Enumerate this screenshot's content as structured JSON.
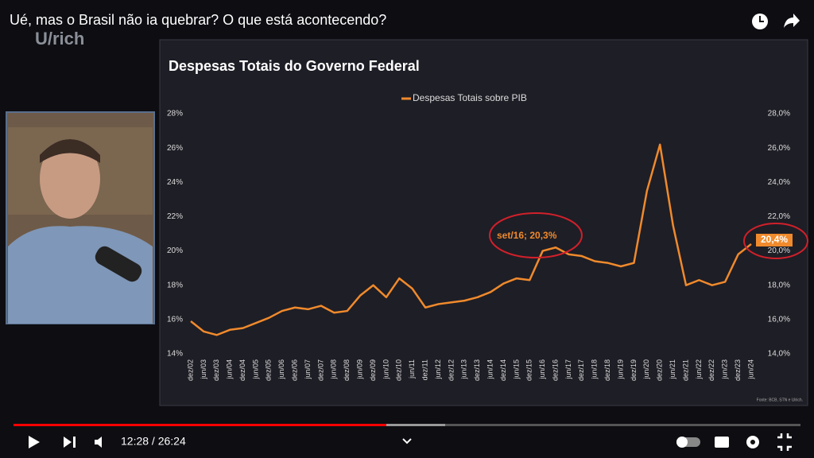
{
  "video": {
    "title": "Ué, mas o Brasil não ia quebrar? O que está acontecendo?",
    "channel_logo": "U/rich",
    "time": "12:28 / 26:24"
  },
  "chart_data": {
    "type": "line",
    "title": "Despesas Totais do Governo Federal",
    "source": "Fonte: BCB, STN e Ulrich.",
    "categories": [
      "dez/02",
      "jun/03",
      "dez/03",
      "jun/04",
      "dez/04",
      "jun/05",
      "dez/05",
      "jun/06",
      "dez/06",
      "jun/07",
      "dez/07",
      "jun/08",
      "dez/08",
      "jun/09",
      "dez/09",
      "jun/10",
      "dez/10",
      "jun/11",
      "dez/11",
      "jun/12",
      "dez/12",
      "jun/13",
      "dez/13",
      "jun/14",
      "dez/14",
      "jun/15",
      "dez/15",
      "jun/16",
      "dez/16",
      "jun/17",
      "dez/17",
      "jun/18",
      "dez/18",
      "jun/19",
      "dez/19",
      "jun/20",
      "dez/20",
      "jun/21",
      "dez/21",
      "jun/22",
      "dez/22",
      "jun/23",
      "dez/23",
      "jun/24"
    ],
    "series": [
      {
        "name": "Despesas Totais sobre PIB",
        "color": "#f08a2c",
        "values": [
          15.9,
          15.3,
          15.1,
          15.4,
          15.5,
          15.8,
          16.1,
          16.5,
          16.7,
          16.6,
          16.8,
          16.4,
          16.5,
          17.4,
          18.0,
          17.3,
          18.4,
          17.8,
          16.7,
          16.9,
          17.0,
          17.1,
          17.3,
          17.6,
          18.1,
          18.4,
          18.3,
          20.0,
          20.2,
          19.8,
          19.7,
          19.4,
          19.3,
          19.1,
          19.3,
          23.5,
          26.2,
          21.5,
          18.0,
          18.3,
          18.0,
          18.2,
          19.8,
          20.4
        ]
      }
    ],
    "ylim": [
      14,
      28
    ],
    "yticks": [
      {
        "value": 14,
        "label": "14%"
      },
      {
        "value": 16,
        "label": "16%"
      },
      {
        "value": 18,
        "label": "18%"
      },
      {
        "value": 20,
        "label": "20%"
      },
      {
        "value": 22,
        "label": "22%"
      },
      {
        "value": 24,
        "label": "24%"
      },
      {
        "value": 26,
        "label": "26%"
      },
      {
        "value": 28,
        "label": "28%"
      }
    ],
    "y2lim": [
      14,
      28
    ],
    "y2ticks": [
      {
        "value": 14,
        "label": "14,0%"
      },
      {
        "value": 16,
        "label": "16,0%"
      },
      {
        "value": 18,
        "label": "18,0%"
      },
      {
        "value": 20,
        "label": "20,0%"
      },
      {
        "value": 22,
        "label": "22,0%"
      },
      {
        "value": 24,
        "label": "24,0%"
      },
      {
        "value": 26,
        "label": "26,0%"
      },
      {
        "value": 28,
        "label": "28,0%"
      }
    ],
    "annotations": [
      "set/16; 20,3%",
      "20,4%"
    ]
  }
}
